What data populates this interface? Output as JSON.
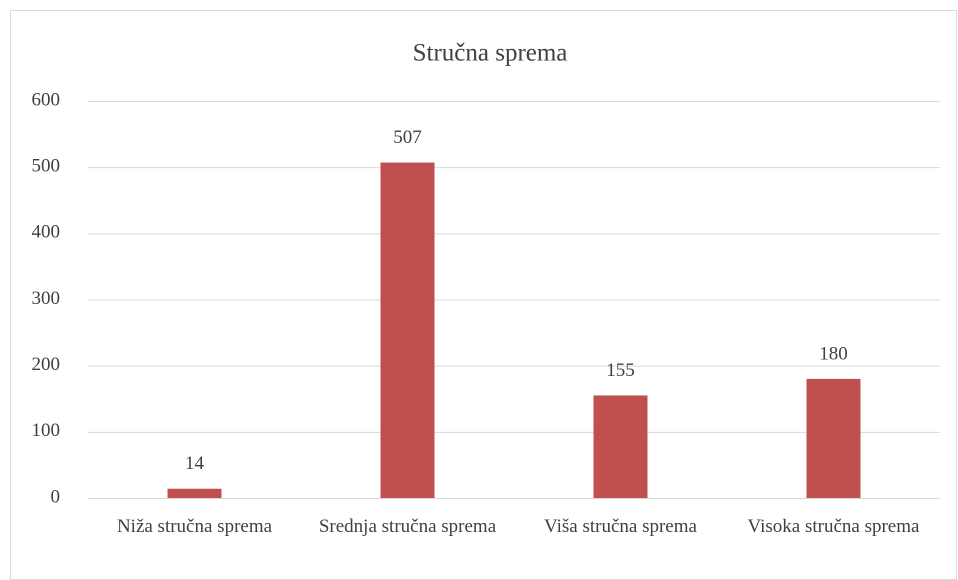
{
  "chart_data": {
    "type": "bar",
    "title": "Stručna sprema",
    "categories": [
      "Niža stručna sprema",
      "Srednja stručna sprema",
      "Viša stručna sprema",
      "Visoka stručna sprema"
    ],
    "values": [
      14,
      507,
      155,
      180
    ],
    "color": "#c0504d",
    "ylim": [
      0,
      600
    ],
    "yticks": [
      0,
      100,
      200,
      300,
      400,
      500,
      600
    ],
    "grid": true,
    "data_labels": true
  }
}
